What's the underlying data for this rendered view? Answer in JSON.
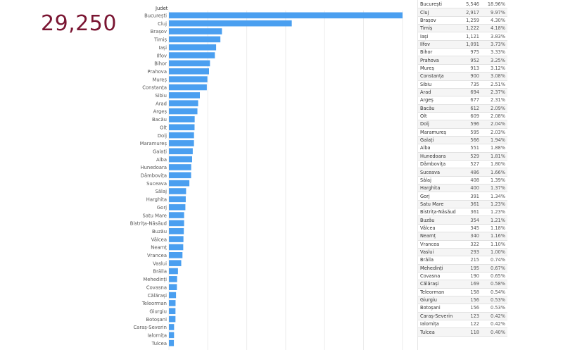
{
  "summary": {
    "total": "29,250"
  },
  "chart_header": "Judet",
  "chart_data": {
    "type": "bar",
    "orientation": "horizontal",
    "title": "",
    "xlabel": "",
    "ylabel": "Judet",
    "categories": [
      "București",
      "Cluj",
      "Brașov",
      "Timiș",
      "Iași",
      "Ilfov",
      "Bihor",
      "Prahova",
      "Mureș",
      "Constanța",
      "Sibiu",
      "Arad",
      "Argeș",
      "Bacău",
      "Olt",
      "Dolj",
      "Maramureș",
      "Galați",
      "Alba",
      "Hunedoara",
      "Dâmbovița",
      "Suceava",
      "Sălaj",
      "Harghita",
      "Gorj",
      "Satu Mare",
      "Bistrița-Năsăud",
      "Buzău",
      "Vâlcea",
      "Neamț",
      "Vrancea",
      "Vaslui",
      "Brăila",
      "Mehedinți",
      "Covasna",
      "Călărași",
      "Teleorman",
      "Giurgiu",
      "Botoșani",
      "Caraș-Severin",
      "Ialomița",
      "Tulcea"
    ],
    "values": [
      5546,
      2917,
      1259,
      1222,
      1121,
      1091,
      975,
      952,
      913,
      900,
      735,
      694,
      677,
      612,
      609,
      596,
      595,
      566,
      551,
      529,
      527,
      486,
      408,
      400,
      391,
      361,
      361,
      354,
      345,
      340,
      322,
      293,
      215,
      195,
      190,
      169,
      158,
      156,
      156,
      123,
      122,
      118
    ],
    "xlim": [
      0,
      5600
    ],
    "grid": true
  },
  "table": {
    "rows": [
      {
        "name": "București",
        "value": "5,546",
        "pct": "18.96%"
      },
      {
        "name": "Cluj",
        "value": "2,917",
        "pct": "9.97%"
      },
      {
        "name": "Brașov",
        "value": "1,259",
        "pct": "4.30%"
      },
      {
        "name": "Timiș",
        "value": "1,222",
        "pct": "4.18%"
      },
      {
        "name": "Iași",
        "value": "1,121",
        "pct": "3.83%"
      },
      {
        "name": "Ilfov",
        "value": "1,091",
        "pct": "3.73%"
      },
      {
        "name": "Bihor",
        "value": "975",
        "pct": "3.33%"
      },
      {
        "name": "Prahova",
        "value": "952",
        "pct": "3.25%"
      },
      {
        "name": "Mureș",
        "value": "913",
        "pct": "3.12%"
      },
      {
        "name": "Constanța",
        "value": "900",
        "pct": "3.08%"
      },
      {
        "name": "Sibiu",
        "value": "735",
        "pct": "2.51%"
      },
      {
        "name": "Arad",
        "value": "694",
        "pct": "2.37%"
      },
      {
        "name": "Argeș",
        "value": "677",
        "pct": "2.31%"
      },
      {
        "name": "Bacău",
        "value": "612",
        "pct": "2.09%"
      },
      {
        "name": "Olt",
        "value": "609",
        "pct": "2.08%"
      },
      {
        "name": "Dolj",
        "value": "596",
        "pct": "2.04%"
      },
      {
        "name": "Maramureș",
        "value": "595",
        "pct": "2.03%"
      },
      {
        "name": "Galați",
        "value": "566",
        "pct": "1.94%"
      },
      {
        "name": "Alba",
        "value": "551",
        "pct": "1.88%"
      },
      {
        "name": "Hunedoara",
        "value": "529",
        "pct": "1.81%"
      },
      {
        "name": "Dâmbovița",
        "value": "527",
        "pct": "1.80%"
      },
      {
        "name": "Suceava",
        "value": "486",
        "pct": "1.66%"
      },
      {
        "name": "Sălaj",
        "value": "408",
        "pct": "1.39%"
      },
      {
        "name": "Harghita",
        "value": "400",
        "pct": "1.37%"
      },
      {
        "name": "Gorj",
        "value": "391",
        "pct": "1.34%"
      },
      {
        "name": "Satu Mare",
        "value": "361",
        "pct": "1.23%"
      },
      {
        "name": "Bistrița-Năsăud",
        "value": "361",
        "pct": "1.23%"
      },
      {
        "name": "Buzău",
        "value": "354",
        "pct": "1.21%"
      },
      {
        "name": "Vâlcea",
        "value": "345",
        "pct": "1.18%"
      },
      {
        "name": "Neamț",
        "value": "340",
        "pct": "1.16%"
      },
      {
        "name": "Vrancea",
        "value": "322",
        "pct": "1.10%"
      },
      {
        "name": "Vaslui",
        "value": "293",
        "pct": "1.00%"
      },
      {
        "name": "Brăila",
        "value": "215",
        "pct": "0.74%"
      },
      {
        "name": "Mehedinți",
        "value": "195",
        "pct": "0.67%"
      },
      {
        "name": "Covasna",
        "value": "190",
        "pct": "0.65%"
      },
      {
        "name": "Călărași",
        "value": "169",
        "pct": "0.58%"
      },
      {
        "name": "Teleorman",
        "value": "158",
        "pct": "0.54%"
      },
      {
        "name": "Giurgiu",
        "value": "156",
        "pct": "0.53%"
      },
      {
        "name": "Botoșani",
        "value": "156",
        "pct": "0.53%"
      },
      {
        "name": "Caraș-Severin",
        "value": "123",
        "pct": "0.42%"
      },
      {
        "name": "Ialomița",
        "value": "122",
        "pct": "0.42%"
      },
      {
        "name": "Tulcea",
        "value": "118",
        "pct": "0.40%"
      }
    ]
  },
  "colors": {
    "bar": "#4a9ff0",
    "total_text": "#7a1532"
  }
}
